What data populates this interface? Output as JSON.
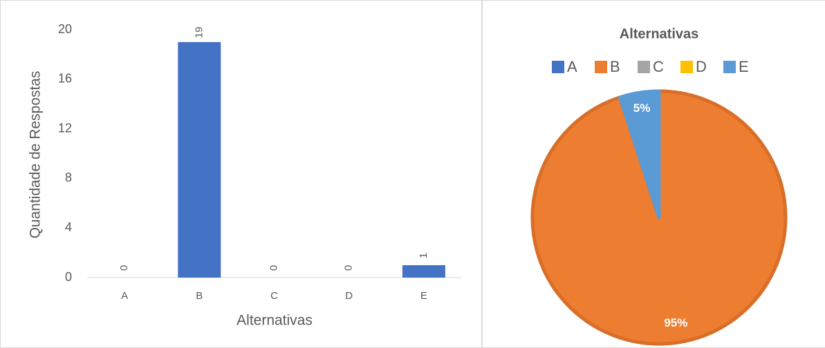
{
  "chart_data": [
    {
      "type": "bar",
      "categories": [
        "A",
        "B",
        "C",
        "D",
        "E"
      ],
      "values": [
        0,
        19,
        0,
        0,
        1
      ],
      "color": "#4472c4",
      "ylim": [
        0,
        20
      ],
      "yticks": [
        0,
        4,
        8,
        12,
        16,
        20
      ],
      "ylabel": "Quantidade de Respostas",
      "xlabel": "Alternativas",
      "grid": false
    },
    {
      "type": "pie",
      "title": "Alternativas",
      "categories": [
        "A",
        "B",
        "C",
        "D",
        "E"
      ],
      "values": [
        0,
        95,
        0,
        0,
        5
      ],
      "value_labels": [
        null,
        "95%",
        null,
        null,
        "5%"
      ],
      "colors": [
        "#4472c4",
        "#ed7d31",
        "#a5a5a5",
        "#ffc000",
        "#5b9bd5"
      ],
      "legend": "top"
    }
  ]
}
